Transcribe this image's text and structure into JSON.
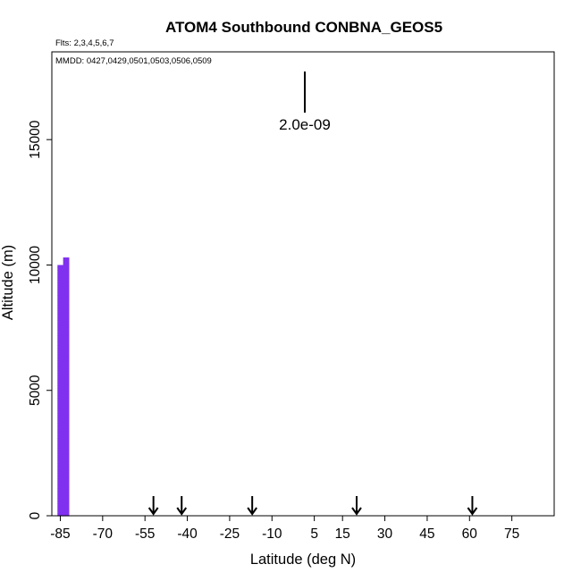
{
  "chart_data": {
    "type": "heatmap",
    "title": "ATOM4 Southbound CONBNA_GEOS5",
    "subtitle_flights": "Flts: 2,3,4,5,6,7",
    "subtitle_dates": "MMDD: 0427,0429,0501,0503,0506,0509",
    "xlabel": "Latitude (deg N)",
    "ylabel": "Altitude (m)",
    "xlim": [
      -88,
      90
    ],
    "ylim": [
      0,
      18500
    ],
    "xticks": [
      -85,
      -70,
      -55,
      -40,
      -25,
      -10,
      5,
      15,
      30,
      45,
      60,
      75
    ],
    "xtick_labels": [
      "-85",
      "-70",
      "-55",
      "-40",
      "-25",
      "-10",
      "5",
      "15",
      "30",
      "45",
      "60",
      "75"
    ],
    "yticks": [
      0,
      5000,
      10000,
      15000
    ],
    "ytick_labels": [
      "0",
      "5000",
      "10000",
      "15000"
    ],
    "scale_bar_label": "2.0e-09",
    "arrow_latitudes": [
      -52,
      -42,
      -17,
      20,
      61
    ],
    "colorscale": [
      "#8c36ee",
      "#7a2ef0",
      "#5a19e3",
      "#3a10d6",
      "#1508c4",
      "#0000b4",
      "#0a2adc",
      "#1b74f2",
      "#58c4ff",
      "#c8f1ff",
      "#ffffff",
      "#fff3a8",
      "#ffd23c",
      "#ffa000",
      "#ff6a00",
      "#e81a00",
      "#c80000"
    ],
    "value_field": "normalized concentration",
    "data_columns": [
      {
        "lat": -86,
        "top": 10000,
        "v": [
          0.04,
          0.04,
          0.04,
          0.04,
          0.04,
          0.04,
          0.04,
          0.04,
          0.04,
          0.04,
          0.04,
          0.04,
          0.04,
          0.04,
          0.04,
          0.04,
          0.04,
          0.04,
          0.04,
          0.04,
          0.04,
          0.04,
          0.04,
          0.04,
          0.04,
          0.04,
          0.04,
          0.04,
          0.04,
          0.04,
          0.04,
          0.04,
          0.04,
          0.04,
          0.04,
          0.04,
          0.04,
          0.04,
          0.04,
          0.04,
          0.04,
          0.04,
          0.04,
          0.04,
          0.04,
          0.04,
          0.04,
          0.04,
          0.04,
          0.04,
          0.04,
          0.04,
          0.04,
          0.04,
          0.04,
          0.04,
          0.04,
          0.04,
          0.04,
          0.04,
          0.04,
          0.04,
          0.04,
          0.04,
          0.04,
          0.04,
          0.04,
          0.04,
          0.04,
          0.04,
          0.04,
          0.04,
          0.04,
          0.04,
          0.04,
          0.04,
          0.04,
          0.04,
          0.04,
          0.04,
          0.04,
          0.04,
          0.04,
          0.04,
          0.04,
          0.04,
          0.04,
          0.04,
          0.04,
          0.04,
          0.04,
          0.04,
          0.04,
          0.04,
          0.04,
          0.04,
          0.04,
          0.04,
          0.04,
          0.04
        ]
      },
      {
        "lat": -84,
        "top": 10300,
        "v": [
          0.04,
          0.04,
          0.04,
          0.04,
          0.04,
          0.04,
          0.04,
          0.04,
          0.04,
          0.04,
          0.04,
          0.04,
          0.04,
          0.04,
          0.04,
          0.04,
          0.04,
          0.04,
          0.04,
          0.04,
          0.04,
          0.04,
          0.04,
          0.04,
          0.04,
          0.04,
          0.04,
          0.04,
          0.04,
          0.04,
          0.04,
          0.04,
          0.04,
          0.04,
          0.04,
          0.04,
          0.04,
          0.04,
          0.04,
          0.04,
          0.04,
          0.04,
          0.04,
          0.04,
          0.04,
          0.04,
          0.04,
          0.04,
          0.04,
          0.04,
          0.04,
          0.04,
          0.04,
          0.04,
          0.04,
          0.04,
          0.04,
          0.04,
          0.04,
          0.04,
          0.04,
          0.04,
          0.04,
          0.04,
          0.04,
          0.04,
          0.04,
          0.04,
          0.04,
          0.04,
          0.04,
          0.04,
          0.04,
          0.04,
          0.04,
          0.04,
          0.04,
          0.04,
          0.04,
          0.04,
          0.04,
          0.04,
          0.04,
          0.04,
          0.04,
          0.04,
          0.04,
          0.04,
          0.04,
          0.04,
          0.04,
          0.04,
          0.04,
          0.04,
          0.04,
          0.04,
          0.04,
          0.04,
          0.04,
          0.04
        ]
      }
    ]
  }
}
